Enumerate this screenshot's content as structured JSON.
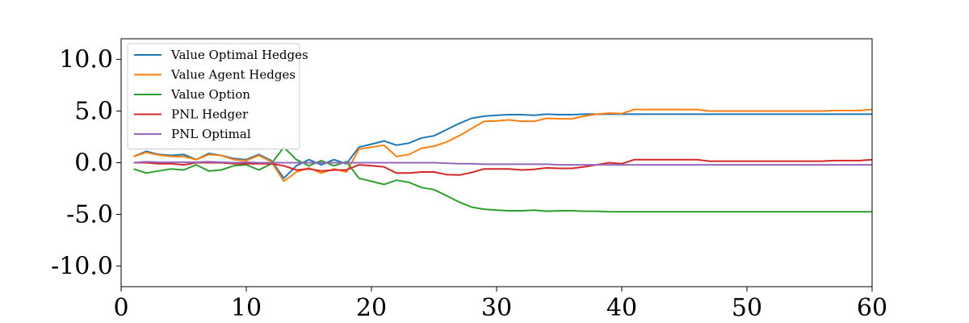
{
  "chart_data": {
    "type": "line",
    "title": "",
    "xlabel": "",
    "ylabel": "",
    "xlim": [
      0,
      60
    ],
    "ylim": [
      -12,
      12
    ],
    "xticks": [
      0,
      10,
      20,
      30,
      40,
      50,
      60
    ],
    "xtick_labels": [
      "0",
      "10",
      "20",
      "30",
      "40",
      "50",
      "60"
    ],
    "yticks": [
      10,
      5,
      0,
      -5,
      -10
    ],
    "ytick_labels": [
      "10.0",
      "5.0",
      "0.0",
      "-5.0",
      "-10.0"
    ],
    "grid": false,
    "legend_position": "upper-left",
    "x": [
      1,
      2,
      3,
      4,
      5,
      6,
      7,
      8,
      9,
      10,
      11,
      12,
      13,
      14,
      15,
      16,
      17,
      18,
      19,
      20,
      21,
      22,
      23,
      24,
      25,
      26,
      27,
      28,
      29,
      30,
      31,
      32,
      33,
      34,
      35,
      36,
      37,
      38,
      39,
      40,
      41,
      42,
      43,
      44,
      45,
      46,
      47,
      48,
      49,
      50,
      51,
      52,
      53,
      54,
      55,
      56,
      57,
      58,
      59,
      60
    ],
    "series": [
      {
        "name": "Value Optimal Hedges",
        "color": "#1f77b4",
        "values": [
          0.6,
          1.1,
          0.8,
          0.7,
          0.8,
          0.3,
          0.9,
          0.7,
          0.4,
          0.3,
          0.8,
          0.2,
          -1.5,
          -0.3,
          0.3,
          -0.2,
          0.3,
          -0.1,
          1.5,
          1.8,
          2.1,
          1.7,
          1.9,
          2.4,
          2.6,
          3.2,
          3.8,
          4.3,
          4.5,
          4.6,
          4.65,
          4.65,
          4.6,
          4.7,
          4.65,
          4.65,
          4.7,
          4.7,
          4.7,
          4.7,
          4.7,
          4.7,
          4.7,
          4.7,
          4.7,
          4.7,
          4.7,
          4.7,
          4.7,
          4.7,
          4.7,
          4.7,
          4.7,
          4.7,
          4.7,
          4.7,
          4.7,
          4.7,
          4.7,
          4.7
        ]
      },
      {
        "name": "Value Agent Hedges",
        "color": "#ff7f0e",
        "values": [
          0.6,
          1.0,
          0.75,
          0.6,
          0.6,
          0.3,
          0.8,
          0.7,
          0.3,
          0.2,
          0.7,
          0.1,
          -1.8,
          -0.9,
          -0.5,
          -1.0,
          -0.6,
          -0.9,
          1.3,
          1.5,
          1.7,
          0.6,
          0.8,
          1.4,
          1.6,
          2.0,
          2.6,
          3.3,
          4.0,
          4.05,
          4.15,
          4.0,
          4.0,
          4.3,
          4.25,
          4.25,
          4.5,
          4.7,
          4.8,
          4.75,
          5.15,
          5.15,
          5.15,
          5.15,
          5.15,
          5.15,
          5.0,
          5.0,
          5.0,
          5.0,
          5.0,
          5.0,
          5.0,
          5.0,
          5.0,
          5.0,
          5.05,
          5.05,
          5.05,
          5.15
        ]
      },
      {
        "name": "Value Option",
        "color": "#2ca02c",
        "values": [
          -0.6,
          -1.0,
          -0.8,
          -0.6,
          -0.7,
          -0.2,
          -0.8,
          -0.7,
          -0.3,
          -0.2,
          -0.7,
          -0.1,
          1.5,
          0.3,
          -0.3,
          0.2,
          -0.3,
          0.1,
          -1.5,
          -1.8,
          -2.1,
          -1.7,
          -1.9,
          -2.4,
          -2.6,
          -3.2,
          -3.8,
          -4.3,
          -4.5,
          -4.6,
          -4.65,
          -4.65,
          -4.6,
          -4.7,
          -4.65,
          -4.65,
          -4.7,
          -4.7,
          -4.75,
          -4.75,
          -4.75,
          -4.75,
          -4.75,
          -4.75,
          -4.75,
          -4.75,
          -4.75,
          -4.75,
          -4.75,
          -4.75,
          -4.75,
          -4.75,
          -4.75,
          -4.75,
          -4.75,
          -4.75,
          -4.75,
          -4.75,
          -4.75,
          -4.75
        ]
      },
      {
        "name": "PNL Hedger",
        "color": "#d62728",
        "values": [
          0.0,
          0.0,
          -0.1,
          -0.1,
          -0.2,
          0.0,
          0.0,
          0.0,
          -0.1,
          -0.1,
          -0.1,
          -0.1,
          -0.3,
          -0.7,
          -0.6,
          -0.8,
          -0.7,
          -0.7,
          -0.2,
          -0.3,
          -0.4,
          -1.0,
          -1.0,
          -0.9,
          -0.9,
          -1.15,
          -1.2,
          -0.95,
          -0.6,
          -0.6,
          -0.6,
          -0.7,
          -0.65,
          -0.5,
          -0.55,
          -0.55,
          -0.4,
          -0.2,
          0.0,
          -0.1,
          0.3,
          0.3,
          0.3,
          0.3,
          0.3,
          0.3,
          0.15,
          0.15,
          0.15,
          0.15,
          0.15,
          0.15,
          0.15,
          0.15,
          0.15,
          0.15,
          0.2,
          0.2,
          0.2,
          0.3
        ]
      },
      {
        "name": "PNL Optimal",
        "color": "#9467bd",
        "values": [
          0.0,
          0.1,
          0.05,
          0.05,
          0.05,
          0.05,
          0.1,
          0.05,
          0.0,
          0.05,
          0.0,
          0.0,
          0.0,
          0.0,
          0.0,
          0.0,
          0.0,
          0.0,
          0.0,
          0.0,
          0.0,
          0.0,
          0.0,
          0.0,
          0.0,
          -0.05,
          -0.1,
          -0.1,
          -0.15,
          -0.15,
          -0.15,
          -0.15,
          -0.15,
          -0.15,
          -0.2,
          -0.2,
          -0.2,
          -0.2,
          -0.2,
          -0.2,
          -0.2,
          -0.2,
          -0.2,
          -0.2,
          -0.2,
          -0.2,
          -0.2,
          -0.2,
          -0.2,
          -0.2,
          -0.2,
          -0.2,
          -0.2,
          -0.2,
          -0.2,
          -0.2,
          -0.2,
          -0.2,
          -0.2,
          -0.2
        ]
      }
    ]
  }
}
